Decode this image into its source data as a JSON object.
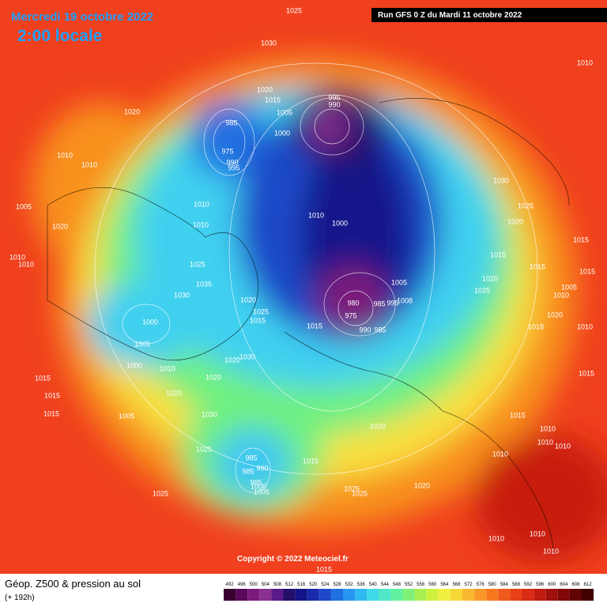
{
  "header": {
    "date": "Mercredi 19 octobre 2022",
    "time": "2:00 locale",
    "run": "Run GFS 0 Z du Mardi 11 octobre 2022"
  },
  "copyright": "Copyright © 2022 Meteociel.fr",
  "legend": {
    "title": "Géop. Z500 & pression au sol",
    "subtitle": "(+ 192h)",
    "scale": [
      492,
      496,
      500,
      504,
      508,
      512,
      516,
      520,
      524,
      528,
      532,
      536,
      540,
      544,
      548,
      552,
      556,
      560,
      564,
      568,
      572,
      576,
      580,
      584,
      588,
      592,
      596,
      600,
      604,
      608,
      612
    ],
    "colors": [
      "#3a0030",
      "#5a0a5a",
      "#7a1a7a",
      "#8a3090",
      "#5a1a8a",
      "#24106a",
      "#14148a",
      "#1a2aaa",
      "#1e48c8",
      "#2070e0",
      "#2896f0",
      "#30b8f0",
      "#40d8e8",
      "#50e8c8",
      "#60f0a0",
      "#80f078",
      "#a8f050",
      "#d0f040",
      "#f0f040",
      "#f8d838",
      "#f8b830",
      "#f89828",
      "#f87820",
      "#f05a1c",
      "#e84018",
      "#d82c14",
      "#c01c10",
      "#a0100c",
      "#800808",
      "#600404",
      "#400000"
    ]
  },
  "isobar_labels": [
    "1025",
    "1030",
    "1010",
    "1020",
    "1015",
    "1005",
    "995",
    "990",
    "985",
    "1000",
    "975",
    "990",
    "995",
    "1020",
    "1010",
    "1010",
    "1030",
    "1005",
    "1010",
    "1025",
    "1010",
    "1000",
    "1020",
    "1020",
    "1010",
    "1015",
    "1010",
    "1010",
    "1025",
    "1015",
    "1015",
    "1015",
    "1035",
    "1005",
    "1020",
    "1005",
    "1030",
    "1025",
    "1010",
    "1020",
    "980",
    "985",
    "995",
    "1008",
    "1025",
    "975",
    "1015",
    "1000",
    "1020",
    "1015",
    "990",
    "985",
    "1018",
    "1010",
    "1005",
    "1030",
    "1020",
    "1000",
    "1010",
    "1015",
    "1015",
    "1020",
    "1015",
    "1020",
    "1015",
    "1005",
    "1030",
    "1015",
    "1020",
    "1010",
    "1010",
    "1010",
    "1025",
    "1010",
    "985",
    "1015",
    "990",
    "985",
    "985",
    "1000",
    "1005",
    "1020",
    "1025",
    "1025",
    "1025",
    "1010",
    "1010",
    "1010",
    "1015"
  ]
}
